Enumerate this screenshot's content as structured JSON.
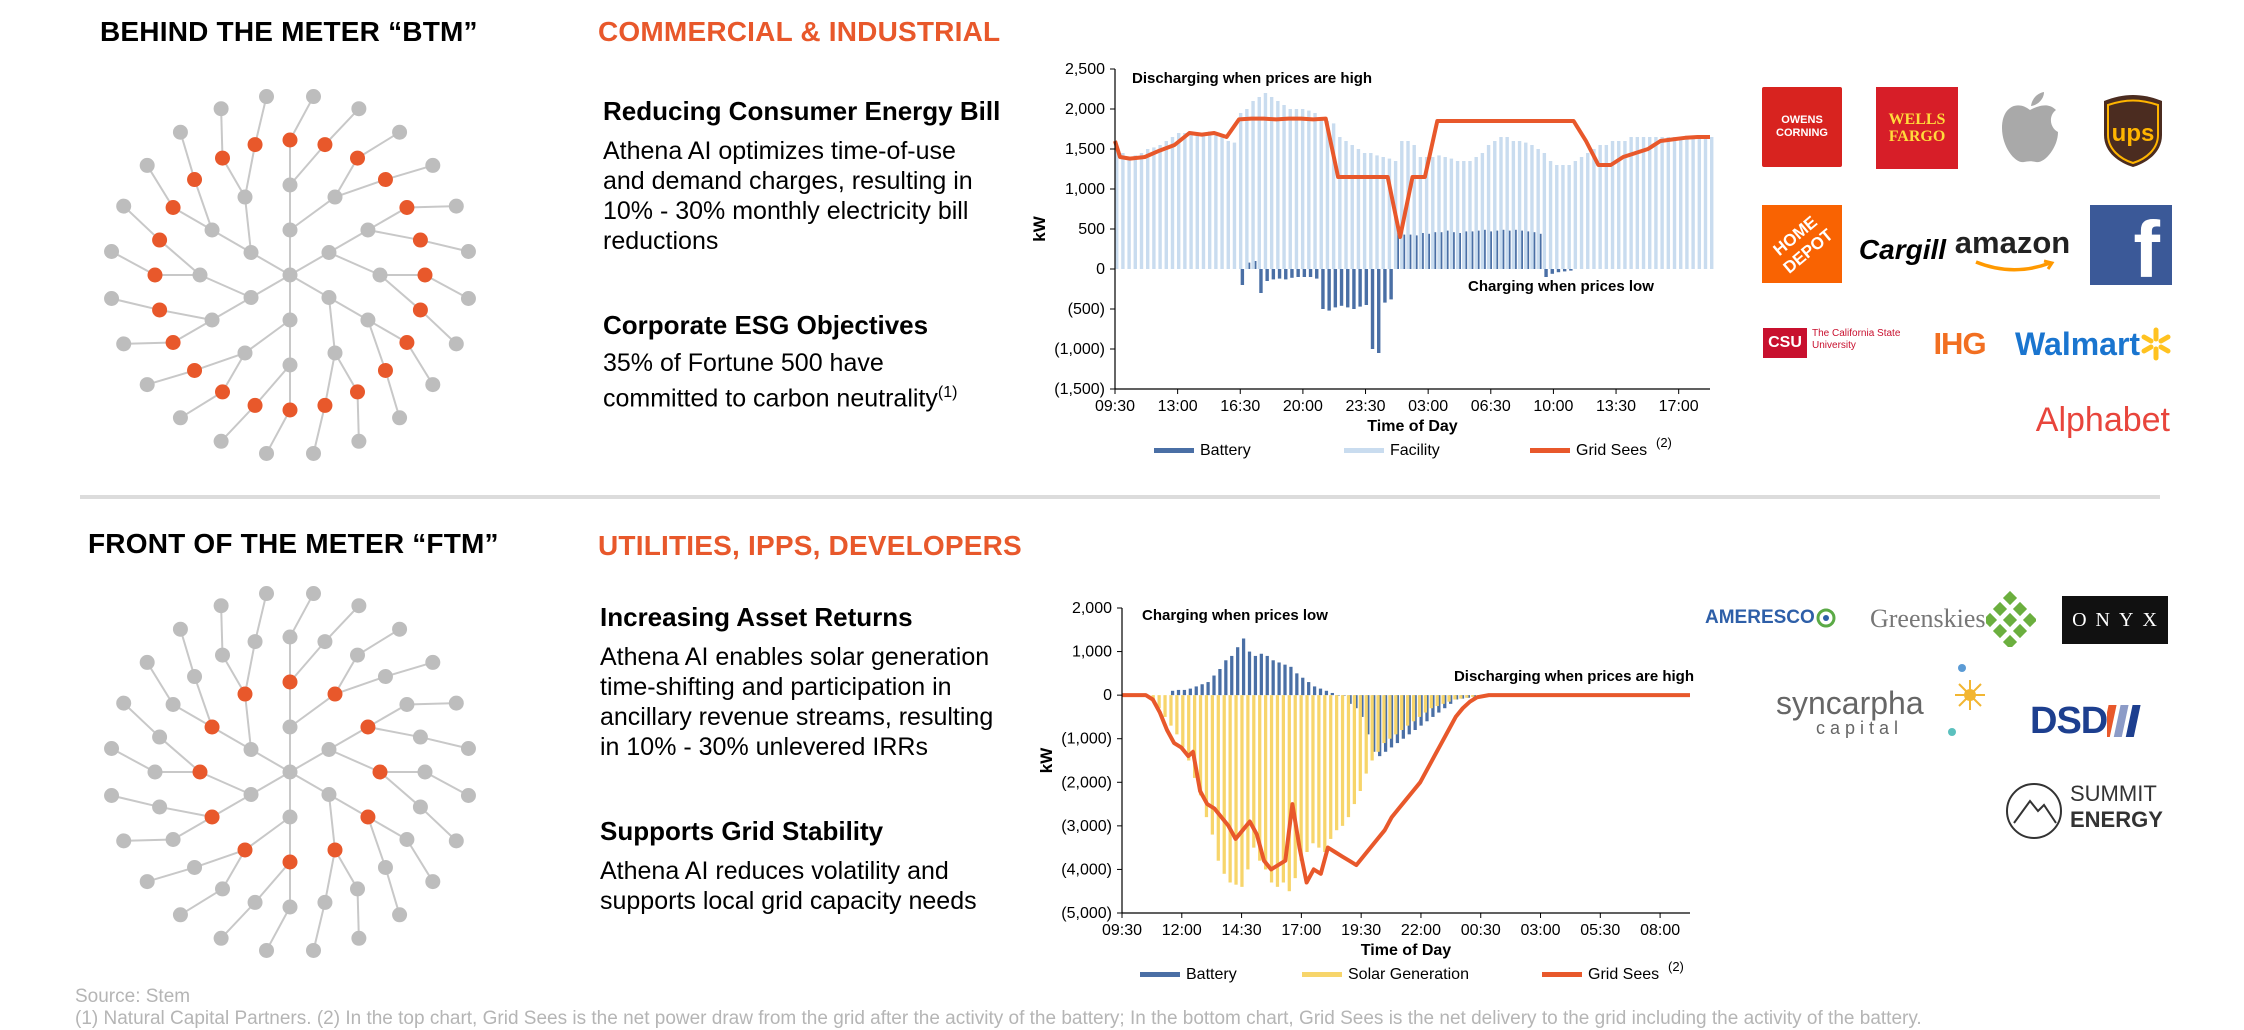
{
  "btm": {
    "title": "BEHIND THE METER “BTM”",
    "segment": "COMMERCIAL & INDUSTRIAL",
    "features": [
      {
        "heading": "Reducing Consumer Energy Bill",
        "lines": [
          "Athena AI optimizes time-of-use",
          "and demand charges, resulting in",
          "10% - 30% monthly electricity bill",
          "reductions"
        ]
      },
      {
        "heading": "Corporate ESG Objectives",
        "lines": [
          "35% of Fortune 500 have",
          "committed to carbon neutrality"
        ],
        "superscript": "(1)"
      }
    ],
    "logos": [
      "OWENS CORNING",
      "WELLS FARGO",
      "apple-logo",
      "ups",
      "HOME DEPOT",
      "Cargill",
      "amazon",
      "f",
      "CSU",
      "The California State University",
      "IHG",
      "Walmart",
      "Alphabet"
    ]
  },
  "ftm": {
    "title": "FRONT OF THE METER “FTM”",
    "segment": "UTILITIES, IPPS, DEVELOPERS",
    "features": [
      {
        "heading": "Increasing Asset Returns",
        "lines": [
          "Athena AI enables solar generation",
          "time-shifting and participation in",
          "ancillary revenue streams, resulting",
          "in 10% - 30% unlevered IRRs"
        ]
      },
      {
        "heading": "Supports Grid Stability",
        "lines": [
          "Athena AI reduces volatility and",
          "supports local grid capacity needs"
        ]
      }
    ],
    "logos": [
      "AMERESCO",
      "Greenskies",
      "ONYX",
      "syncarpha",
      "capital",
      "DSD",
      "SUMMIT",
      "ENERGY"
    ]
  },
  "footer": {
    "source": "Source: Stem",
    "note": "(1) Natural Capital Partners. (2) In the top chart, Grid Sees is the net power draw from the grid after the activity of the battery;  In the bottom chart, Grid Sees is the net delivery to the grid including the activity of the battery."
  },
  "colors": {
    "accent": "#E8582B",
    "battery": "#4A6FA5",
    "facility": "#C9DCEF",
    "solar": "#F7D56B",
    "grid": "#E8582B",
    "node_gray": "#BDBDBD",
    "node_orange": "#E8582B"
  },
  "chart_data": [
    {
      "type": "bar",
      "title": "",
      "xlabel": "Time of Day",
      "ylabel": "kW",
      "ylim": [
        -1500,
        2500
      ],
      "yticks": [
        "2,500",
        "2,000",
        "1,500",
        "1,000",
        "500",
        "0",
        "(500)",
        "(1,000)",
        "(1,500)"
      ],
      "xticks": [
        "09:30",
        "13:00",
        "16:30",
        "20:00",
        "23:30",
        "03:00",
        "06:30",
        "10:00",
        "13:30",
        "17:00"
      ],
      "annotations": [
        "Discharging when prices are high",
        "Charging when prices low"
      ],
      "legend": [
        "Battery",
        "Facility",
        "Grid Sees"
      ],
      "legend_sup": "(2)",
      "series": [
        {
          "name": "Battery",
          "type": "bar",
          "x": [
            5.0,
            5.25,
            5.5,
            5.75,
            6.0,
            6.25,
            6.5,
            6.75,
            7.0,
            7.25,
            7.5,
            7.75,
            8.0,
            8.25,
            8.5,
            8.75,
            9.0,
            9.25,
            9.5,
            9.75,
            10.0,
            10.25,
            10.5,
            10.75,
            11.0,
            11.25,
            11.5,
            11.75,
            12.0,
            12.25,
            12.5,
            12.75,
            13.0,
            13.25,
            13.5,
            13.75,
            14.0,
            14.25,
            14.5,
            14.75,
            15.0,
            15.25,
            15.5,
            15.75,
            16.0,
            16.25,
            16.5,
            16.75,
            17.0,
            17.25,
            17.5,
            17.75,
            18.0,
            18.25
          ],
          "values": [
            -200,
            80,
            100,
            -300,
            -150,
            -130,
            -120,
            -130,
            -110,
            -100,
            -100,
            -100,
            -120,
            -500,
            -520,
            -480,
            -460,
            -480,
            -500,
            -470,
            -450,
            -1000,
            -1050,
            -420,
            -380,
            450,
            430,
            430,
            420,
            450,
            440,
            460,
            460,
            480,
            460,
            450,
            470,
            470,
            480,
            490,
            470,
            480,
            490,
            480,
            490,
            480,
            470,
            460,
            440,
            -100,
            -60,
            -40,
            -30,
            -20
          ]
        },
        {
          "name": "Facility",
          "type": "bar",
          "x": [
            0,
            0.25,
            0.5,
            0.75,
            1.0,
            1.25,
            1.5,
            1.75,
            2.0,
            2.25,
            2.5,
            2.75,
            3.0,
            3.25,
            3.5,
            3.75,
            4.0,
            4.25,
            4.5,
            4.75,
            5.0,
            5.25,
            5.5,
            5.75,
            6.0,
            6.25,
            6.5,
            6.75,
            7.0,
            7.25,
            7.5,
            7.75,
            8.0,
            8.25,
            8.5,
            8.75,
            9.0,
            9.25,
            9.5,
            9.75,
            10.0,
            10.25,
            10.5,
            10.75,
            11.0,
            11.25,
            11.5,
            11.75,
            12.0,
            12.25,
            12.5,
            12.75,
            13.0,
            13.25,
            13.5,
            13.75,
            14.0,
            14.25,
            14.5,
            14.75,
            15.0,
            15.25,
            15.5,
            15.75,
            16.0,
            16.25,
            16.5,
            16.75,
            17.0,
            17.25,
            17.5,
            17.75,
            18.0,
            18.25,
            18.5,
            18.75,
            19.0,
            19.25,
            19.5,
            19.75,
            20.0,
            20.25,
            20.5,
            20.75,
            21.0,
            21.25,
            21.5,
            21.75,
            22.0,
            22.25,
            22.5,
            22.75,
            23.0,
            23.25,
            23.5,
            23.75,
            24.0
          ],
          "values": [
            1500,
            1450,
            1400,
            1420,
            1450,
            1500,
            1520,
            1550,
            1600,
            1650,
            1700,
            1700,
            1720,
            1700,
            1700,
            1720,
            1700,
            1680,
            1600,
            1580,
            1950,
            2000,
            2100,
            2150,
            2200,
            2150,
            2100,
            2050,
            2000,
            2000,
            2000,
            1980,
            1950,
            1900,
            1850,
            1820,
            1650,
            1600,
            1550,
            1500,
            1450,
            1450,
            1420,
            1400,
            1380,
            1350,
            1600,
            1600,
            1550,
            1400,
            1400,
            1400,
            1420,
            1400,
            1380,
            1350,
            1350,
            1350,
            1400,
            1450,
            1550,
            1600,
            1650,
            1650,
            1600,
            1600,
            1580,
            1550,
            1500,
            1450,
            1350,
            1300,
            1300,
            1300,
            1350,
            1400,
            1450,
            1500,
            1550,
            1550,
            1600,
            1600,
            1600,
            1650,
            1650,
            1650,
            1650,
            1650,
            1650,
            1650,
            1650,
            1650,
            1650,
            1650,
            1650,
            1650,
            1650
          ]
        },
        {
          "name": "Grid Sees",
          "type": "line",
          "x": [
            0,
            0.2,
            0.6,
            1.2,
            1.8,
            2.4,
            3.0,
            3.5,
            4.0,
            4.5,
            5.0,
            5.5,
            6.0,
            6.5,
            7.0,
            7.5,
            8.0,
            8.5,
            9.0,
            9.5,
            10.0,
            10.5,
            11.0,
            11.5,
            12.0,
            12.5,
            13.0,
            13.5,
            14.0,
            14.5,
            15.0,
            15.5,
            16.0,
            16.5,
            17.0,
            17.5,
            18.0,
            18.5,
            19.0,
            19.5,
            20.0,
            20.5,
            21.0,
            21.5,
            22.0,
            22.5,
            23.0,
            23.5,
            24.0
          ],
          "values": [
            1600,
            1400,
            1380,
            1400,
            1480,
            1550,
            1700,
            1680,
            1700,
            1650,
            1870,
            1880,
            1880,
            1870,
            1880,
            1880,
            1870,
            1880,
            1150,
            1150,
            1150,
            1150,
            1150,
            400,
            1150,
            1150,
            1850,
            1850,
            1850,
            1850,
            1850,
            1850,
            1850,
            1850,
            1850,
            1850,
            1850,
            1850,
            1600,
            1300,
            1300,
            1400,
            1450,
            1500,
            1600,
            1620,
            1640,
            1650,
            1650
          ]
        }
      ]
    },
    {
      "type": "bar",
      "title": "",
      "xlabel": "Time of Day",
      "ylabel": "kW",
      "ylim": [
        -5000,
        2000
      ],
      "yticks": [
        "2,000",
        "1,000",
        "0",
        "(1,000)",
        "(2,000)",
        "(3,000)",
        "(4,000)",
        "(5,000)"
      ],
      "xticks": [
        "09:30",
        "12:00",
        "14:30",
        "17:00",
        "19:30",
        "22:00",
        "00:30",
        "03:00",
        "05:30",
        "08:00"
      ],
      "annotations": [
        "Charging when prices low",
        "Discharging when prices are high"
      ],
      "legend": [
        "Battery",
        "Solar Generation",
        "Grid Sees"
      ],
      "legend_sup": "(2)",
      "series": [
        {
          "name": "Battery",
          "type": "bar",
          "x": [
            2.0,
            2.25,
            2.5,
            2.75,
            3.0,
            3.25,
            3.5,
            3.75,
            4.0,
            4.25,
            4.5,
            4.75,
            5.0,
            5.25,
            5.5,
            5.75,
            6.0,
            6.25,
            6.5,
            6.75,
            7.0,
            7.25,
            7.5,
            7.75,
            8.0,
            8.25,
            8.5,
            8.75,
            9.0,
            9.25,
            9.5,
            9.75,
            10.0,
            10.25,
            10.5,
            10.75,
            11.0,
            11.25,
            11.5,
            11.75,
            12.0,
            12.25,
            12.5,
            12.75,
            13.0,
            13.25,
            13.5,
            13.75,
            14.0,
            14.25,
            14.5,
            14.75,
            15.0,
            15.25,
            15.5,
            15.75,
            16.0
          ],
          "values": [
            100,
            120,
            120,
            150,
            200,
            250,
            300,
            450,
            600,
            800,
            900,
            1100,
            1300,
            1000,
            900,
            950,
            900,
            800,
            750,
            700,
            650,
            500,
            400,
            300,
            200,
            150,
            100,
            50,
            0,
            0,
            -200,
            -300,
            -500,
            -900,
            -1300,
            -1400,
            -1300,
            -1200,
            -1100,
            -1000,
            -900,
            -800,
            -700,
            -600,
            -500,
            -400,
            -300,
            -200,
            -100,
            -80,
            -60,
            -50,
            -40,
            -30,
            -20,
            -10,
            0
          ]
        },
        {
          "name": "Solar Generation",
          "type": "bar",
          "x": [
            1.25,
            1.5,
            1.75,
            2.0,
            2.25,
            2.5,
            2.75,
            3.0,
            3.25,
            3.5,
            3.75,
            4.0,
            4.25,
            4.5,
            4.75,
            5.0,
            5.25,
            5.5,
            5.75,
            6.0,
            6.25,
            6.5,
            6.75,
            7.0,
            7.25,
            7.5,
            7.75,
            8.0,
            8.25,
            8.5,
            8.75,
            9.0,
            9.25,
            9.5,
            9.75,
            10.0,
            10.25,
            10.5,
            10.75,
            11.0,
            11.25,
            11.5,
            11.75,
            12.0,
            12.25,
            12.5,
            12.75,
            13.0,
            13.25,
            13.5,
            13.75,
            14.0,
            14.25,
            14.5,
            14.75,
            15.0,
            15.25,
            15.5
          ],
          "values": [
            -100,
            -300,
            -500,
            -700,
            -900,
            -1200,
            -1500,
            -1900,
            -2300,
            -2800,
            -3200,
            -3800,
            -4100,
            -4300,
            -4350,
            -4400,
            -4000,
            -3500,
            -3800,
            -4000,
            -4300,
            -4400,
            -4300,
            -4500,
            -4200,
            -3800,
            -3600,
            -3400,
            -3500,
            -3600,
            -3300,
            -3100,
            -3000,
            -2800,
            -2500,
            -2200,
            -1800,
            -1500,
            -1300,
            -1100,
            -1000,
            -900,
            -800,
            -700,
            -600,
            -500,
            -400,
            -300,
            -250,
            -200,
            -150,
            -100,
            -80,
            -60,
            -40,
            -30,
            -20,
            -10
          ]
        },
        {
          "name": "Grid Sees",
          "type": "line",
          "x": [
            0,
            0.5,
            1.0,
            1.3,
            1.6,
            1.9,
            2.2,
            2.5,
            2.8,
            3.0,
            3.3,
            3.6,
            3.9,
            4.2,
            4.5,
            4.8,
            5.1,
            5.4,
            5.7,
            6.0,
            6.3,
            6.6,
            6.9,
            7.2,
            7.5,
            7.8,
            8.1,
            8.4,
            8.7,
            9.0,
            9.3,
            9.6,
            9.9,
            10.2,
            10.5,
            10.8,
            11.1,
            11.4,
            11.7,
            12.0,
            12.3,
            12.6,
            12.9,
            13.2,
            13.5,
            13.8,
            14.1,
            14.4,
            14.7,
            15.0,
            15.5,
            16.0,
            17.0,
            18.0,
            19.0,
            20.0,
            21.0,
            22.0,
            23.0,
            24.0
          ],
          "values": [
            0,
            0,
            0,
            -100,
            -400,
            -800,
            -1100,
            -1200,
            -1400,
            -1300,
            -2200,
            -2500,
            -2600,
            -2800,
            -3000,
            -3300,
            -3100,
            -2900,
            -3200,
            -3800,
            -4000,
            -3900,
            -3800,
            -2500,
            -3500,
            -4300,
            -4000,
            -4100,
            -3500,
            -3600,
            -3700,
            -3800,
            -3900,
            -3700,
            -3500,
            -3300,
            -3100,
            -2800,
            -2600,
            -2400,
            -2200,
            -2000,
            -1700,
            -1400,
            -1100,
            -800,
            -500,
            -300,
            -150,
            -50,
            0,
            0,
            0,
            0,
            0,
            0,
            0,
            0,
            0,
            0
          ]
        }
      ]
    }
  ]
}
